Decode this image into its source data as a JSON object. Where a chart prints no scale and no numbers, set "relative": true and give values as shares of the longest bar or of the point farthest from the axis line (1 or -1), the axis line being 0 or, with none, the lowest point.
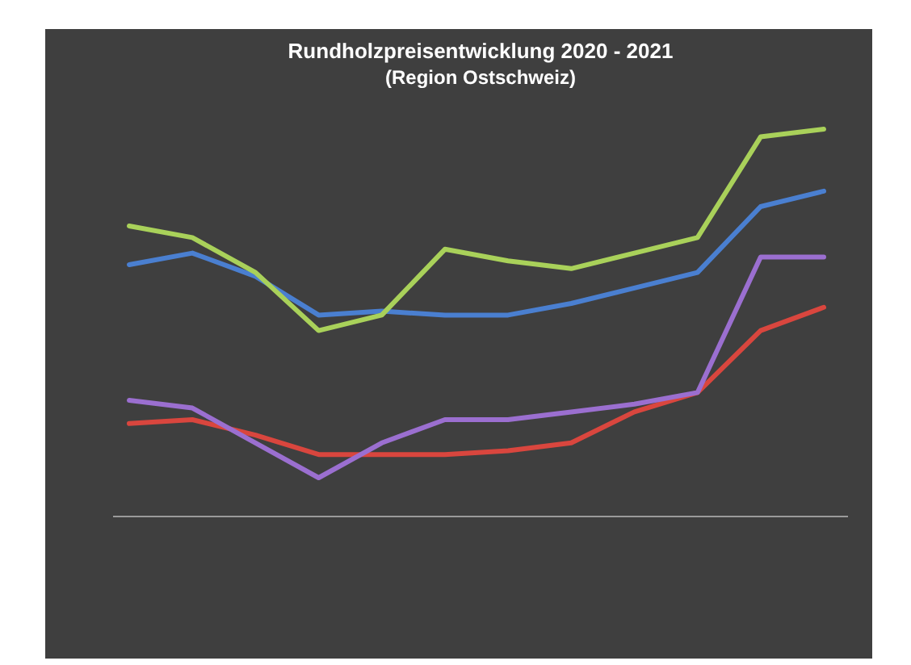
{
  "chart_data": {
    "type": "line",
    "title": "Rundholzpreisentwicklung 2020 - 2021",
    "subtitle": "(Region Ostschweiz)",
    "relative": true,
    "categories": [
      null,
      null,
      null,
      null,
      null,
      null,
      null,
      null,
      null,
      null,
      null,
      null
    ],
    "series": [
      {
        "color": "#4a7fd0",
        "values": [
          0.65,
          0.68,
          0.62,
          0.52,
          0.53,
          0.52,
          0.52,
          0.55,
          0.59,
          0.63,
          0.8,
          0.84
        ]
      },
      {
        "color": "#d9463e",
        "values": [
          0.24,
          0.25,
          0.21,
          0.16,
          0.16,
          0.16,
          0.17,
          0.19,
          0.27,
          0.32,
          0.48,
          0.54
        ]
      },
      {
        "color": "#a9d15a",
        "values": [
          0.75,
          0.72,
          0.63,
          0.48,
          0.52,
          0.69,
          0.66,
          0.64,
          0.68,
          0.72,
          0.98,
          1
        ]
      },
      {
        "color": "#9b6fd0",
        "values": [
          0.3,
          0.28,
          0.19,
          0.1,
          0.19,
          0.25,
          0.25,
          0.27,
          0.29,
          0.32,
          0.67,
          0.67
        ]
      }
    ]
  }
}
